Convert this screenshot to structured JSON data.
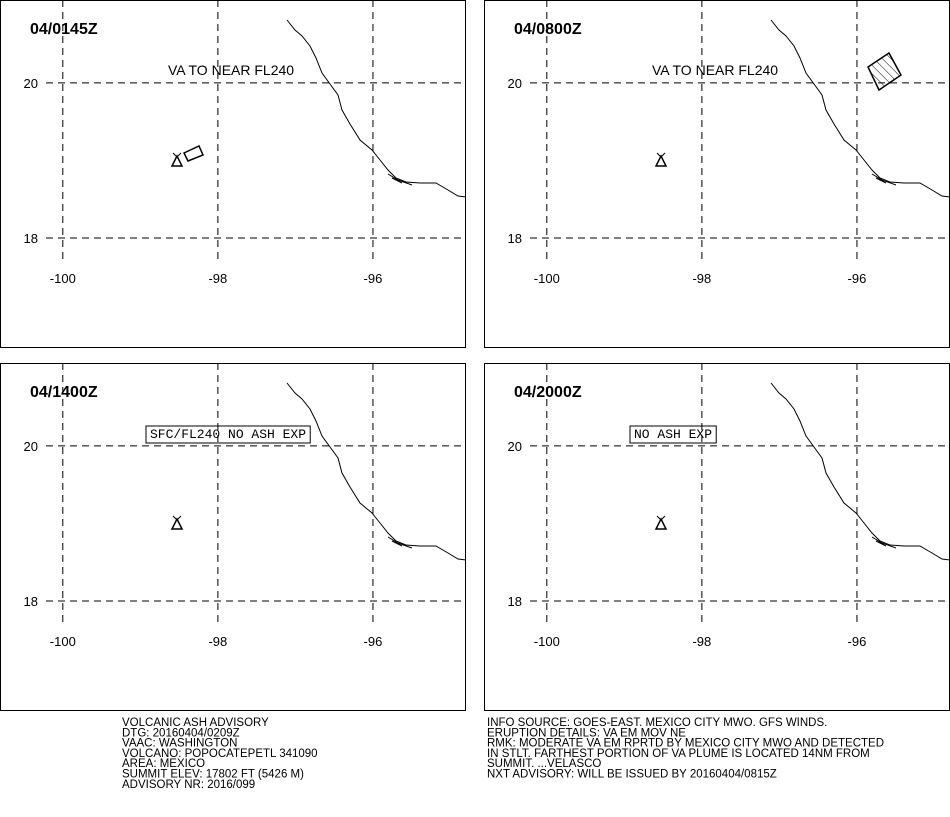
{
  "map": {
    "xlim": [
      -100.81,
      -94.8
    ],
    "ylim": [
      16.58,
      21.07
    ],
    "lat_ticks": [
      20,
      18
    ],
    "lon_ticks": [
      -100,
      -98,
      -96
    ],
    "panels": [
      {
        "time": "04/0145Z",
        "annotation": "VA TO NEAR FL240",
        "annotation_boxed": false
      },
      {
        "time": "04/0800Z",
        "annotation": "VA TO NEAR FL240",
        "annotation_boxed": false
      },
      {
        "time": "04/1400Z",
        "annotation": "SFC/FL240 NO ASH EXP",
        "annotation_boxed": true
      },
      {
        "time": "04/2000Z",
        "annotation": "NO ASH EXP",
        "annotation_boxed": true
      }
    ]
  },
  "advisory_left": [
    "VOLCANIC ASH ADVISORY",
    "DTG: 20160404/0209Z",
    "VAAC: WASHINGTON",
    "VOLCANO: POPOCATEPETL 341090",
    "AREA: MEXICO",
    "SUMMIT ELEV: 17802 FT (5426 M)",
    "ADVISORY NR: 2016/099"
  ],
  "advisory_right": [
    "INFO SOURCE: GOES-EAST. MEXICO CITY MWO. GFS WINDS.",
    "ERUPTION DETAILS: VA EM MOV NE",
    "RMK: MODERATE VA EM RPRTD BY MEXICO CITY MWO AND DETECTED",
    "IN STLT. FARTHEST PORTION OF VA PLUME IS LOCATED 14NM FROM",
    "SUMMIT. ...VELASCO",
    "NXT ADVISORY: WILL BE ISSUED BY 20160404/0815Z"
  ]
}
